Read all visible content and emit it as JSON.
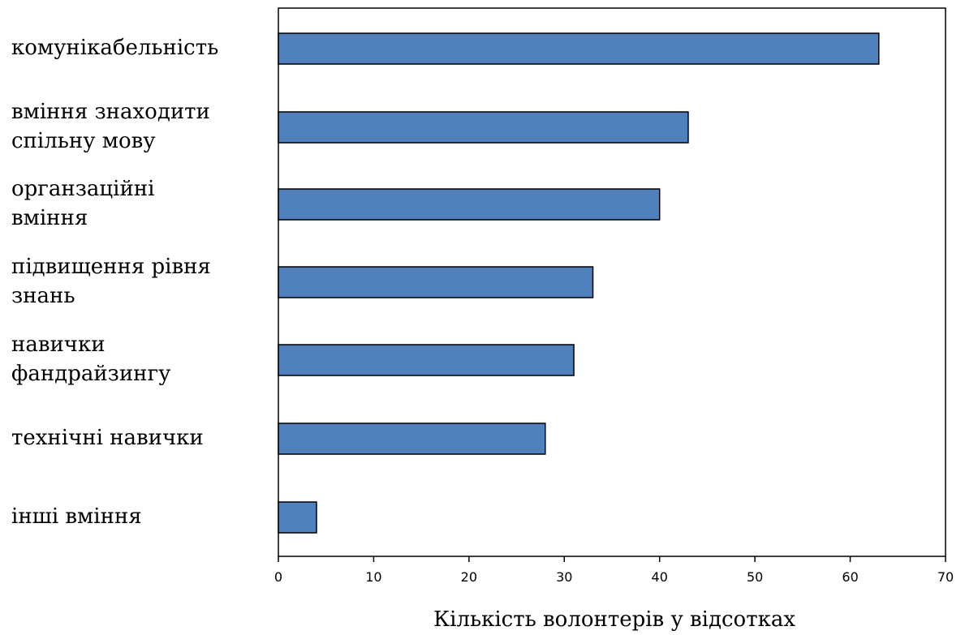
{
  "chart_data": {
    "type": "bar",
    "orientation": "horizontal",
    "title": "",
    "xlabel": "Кількість волонтерів у відсотках",
    "ylabel": "",
    "xlim": [
      0,
      70
    ],
    "x_ticks": [
      "0",
      "10",
      "20",
      "30",
      "40",
      "50",
      "60",
      "70"
    ],
    "grid": false,
    "legend": "none",
    "bar_color": "#4f81bd",
    "categories": [
      [
        "комунікабельність"
      ],
      [
        "вміння знаходити",
        "спільну мову"
      ],
      [
        "органзаційні",
        "вміння"
      ],
      [
        "підвищення рівня",
        "знань"
      ],
      [
        "навички",
        "фандрайзингу"
      ],
      [
        "технічні навички"
      ],
      [
        "інші вміння"
      ]
    ],
    "values": [
      63,
      43,
      40,
      33,
      31,
      28,
      4
    ]
  }
}
